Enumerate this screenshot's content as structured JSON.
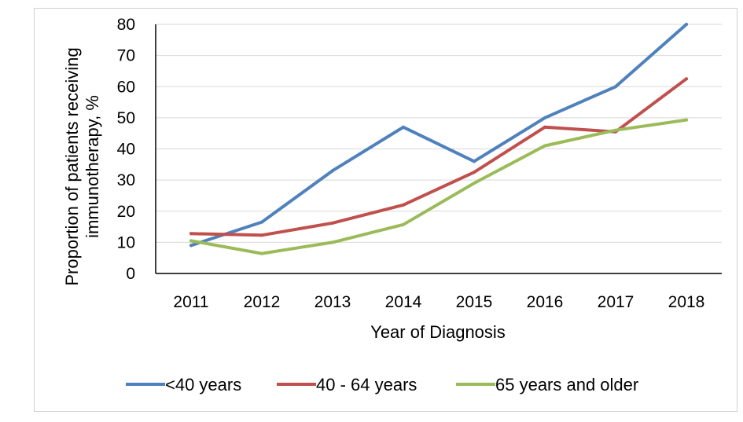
{
  "chart_data": {
    "type": "line",
    "x": [
      "2011",
      "2012",
      "2013",
      "2014",
      "2015",
      "2016",
      "2017",
      "2018"
    ],
    "series": [
      {
        "name": "<40 years",
        "color": "#4f81bd",
        "values": [
          9,
          16.5,
          33,
          47,
          36,
          50,
          60,
          80
        ]
      },
      {
        "name": "40 - 64 years",
        "color": "#c0504d",
        "values": [
          12.8,
          12.3,
          16.2,
          22,
          32.5,
          47,
          45.5,
          62.5
        ]
      },
      {
        "name": "65 years and older",
        "color": "#9bbb59",
        "values": [
          10.5,
          6.4,
          10,
          15.7,
          29,
          41,
          46,
          49.3
        ]
      }
    ],
    "xlabel": "Year of Diagnosis",
    "ylabel_line1": "Proportion of patients receiving",
    "ylabel_line2": "immunotherapy, %",
    "ylim": [
      0,
      80
    ],
    "yticks": [
      0,
      10,
      20,
      30,
      40,
      50,
      60,
      70,
      80
    ],
    "grid": true,
    "legend_position": "bottom"
  }
}
